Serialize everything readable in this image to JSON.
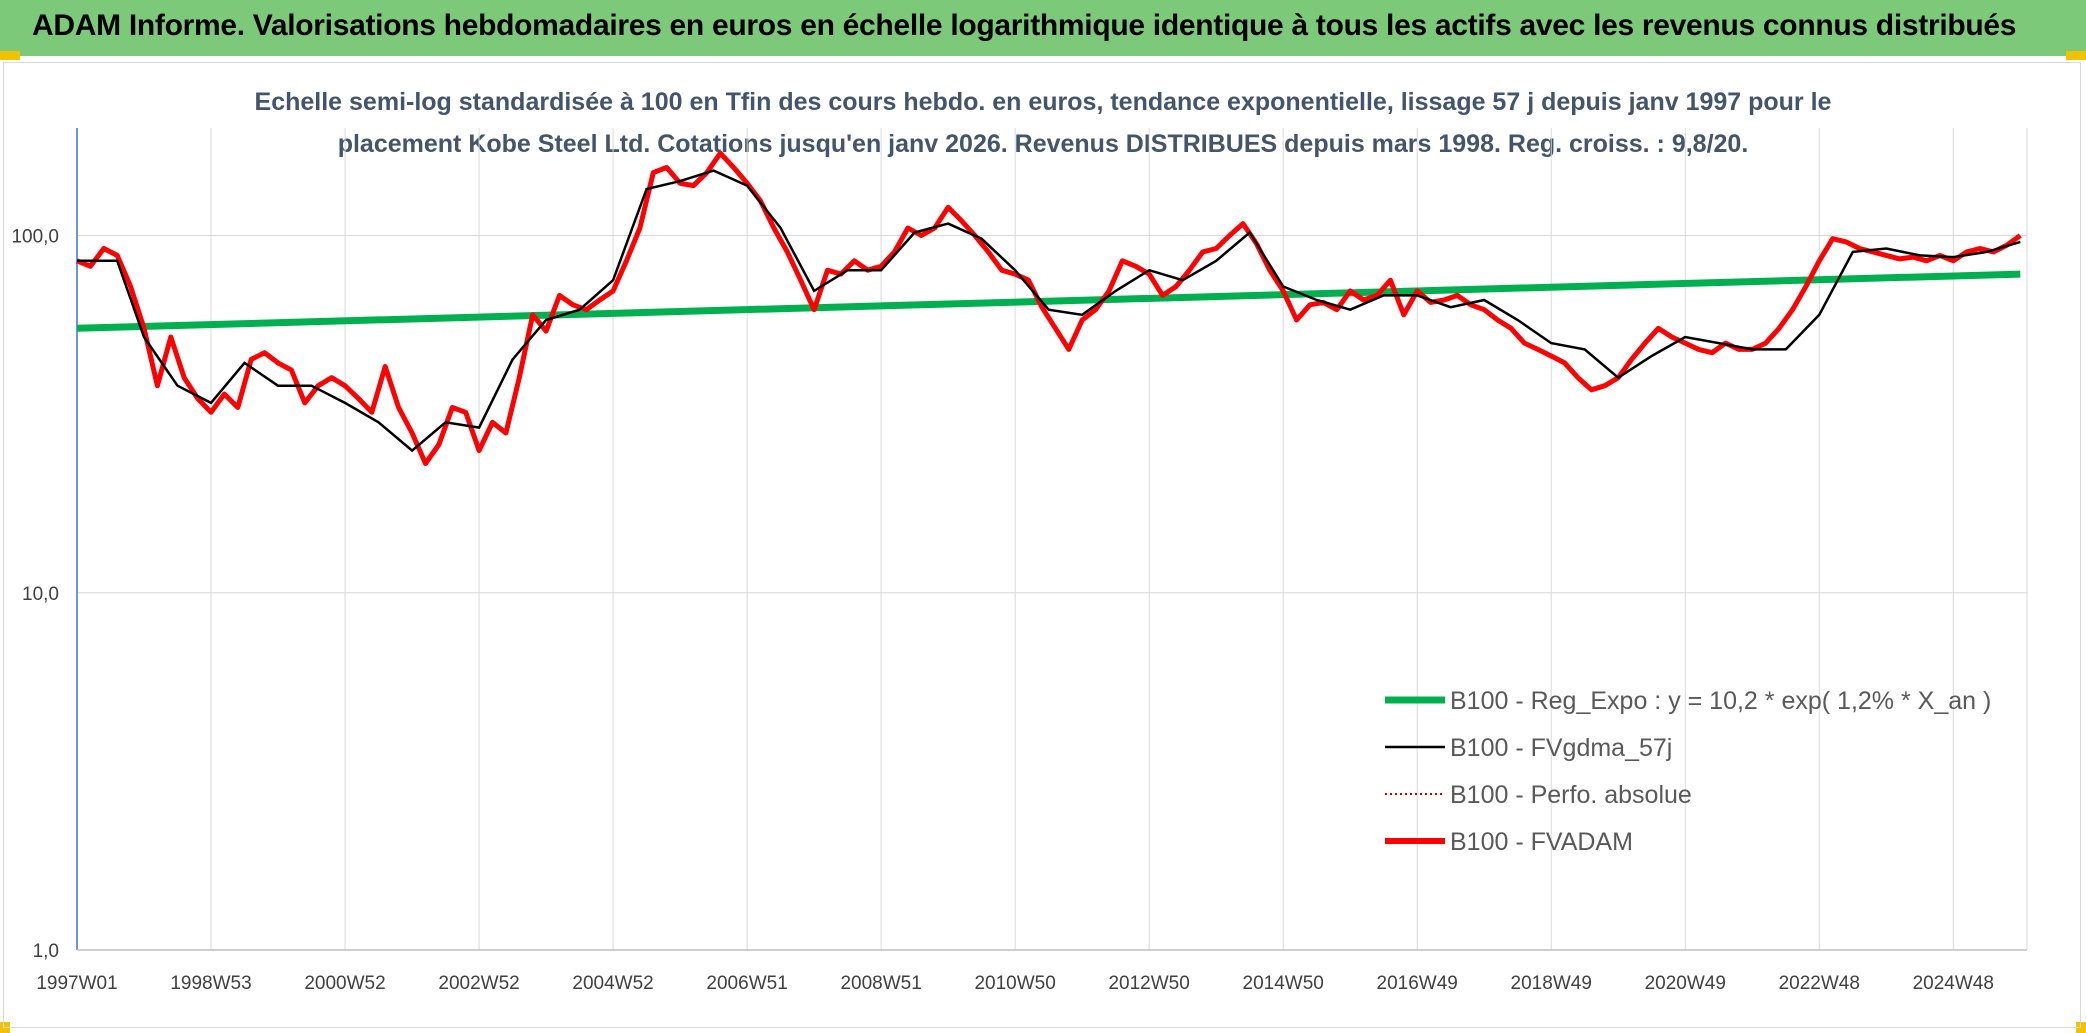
{
  "header": {
    "title": "ADAM Informe. Valorisations hebdomadaires en euros en échelle logarithmique identique à tous les actifs avec les revenus connus distribués"
  },
  "colors": {
    "banner": "#7dc97a",
    "reg_expo": "#00b050",
    "fvgdma": "#000000",
    "perfo": "#c00000",
    "fvadam": "#ff0000",
    "grid": "#d9d9d9"
  },
  "chart_data": {
    "type": "line",
    "title_line1": "Echelle semi-log standardisée à 100 en Tfin des cours hebdo. en euros, tendance exponentielle, lissage 57 j depuis janv 1997 pour le",
    "title_line2": "placement Kobe Steel Ltd. Cotations jusqu'en janv 2026. Revenus DISTRIBUES depuis mars 1998. Reg. croiss. : 9,8/20.",
    "y_scale": "log",
    "ylim": [
      1,
      200
    ],
    "y_ticks": [
      "1,0",
      "10,0",
      "100,0"
    ],
    "x_range": [
      1997.0,
      2026.1
    ],
    "x_ticks": [
      "1997W01",
      "1998W53",
      "2000W52",
      "2002W52",
      "2004W52",
      "2006W51",
      "2008W51",
      "2010W50",
      "2012W50",
      "2014W50",
      "2016W49",
      "2018W49",
      "2020W49",
      "2022W48",
      "2024W48"
    ],
    "grid": true,
    "legend_position": "lower-right",
    "series": [
      {
        "name": "B100 - Reg_Expo : y = 10,2 * exp( 1,2% *  X_an )",
        "style": "thick-green",
        "x": [
          1997.0,
          2026.0
        ],
        "y": [
          55,
          78
        ]
      },
      {
        "name": "B100 - FVgdma_57j",
        "style": "thin-black",
        "x": [
          1997.0,
          1997.6,
          1998.0,
          1998.5,
          1999.0,
          1999.5,
          2000.0,
          2000.5,
          2001.0,
          2001.5,
          2002.0,
          2002.5,
          2003.0,
          2003.5,
          2004.0,
          2004.5,
          2005.0,
          2005.5,
          2006.0,
          2006.5,
          2007.0,
          2007.5,
          2008.0,
          2008.5,
          2009.0,
          2009.5,
          2010.0,
          2010.5,
          2011.0,
          2011.5,
          2012.0,
          2012.5,
          2013.0,
          2013.5,
          2014.0,
          2014.5,
          2015.0,
          2015.5,
          2016.0,
          2016.5,
          2017.0,
          2017.5,
          2018.0,
          2018.5,
          2019.0,
          2019.5,
          2020.0,
          2020.5,
          2021.0,
          2021.5,
          2022.0,
          2022.5,
          2023.0,
          2023.5,
          2024.0,
          2024.5,
          2025.0,
          2025.5,
          2026.0
        ],
        "y": [
          85,
          85,
          52,
          38,
          34,
          44,
          38,
          38,
          34,
          30,
          25,
          30,
          29,
          45,
          58,
          62,
          75,
          135,
          142,
          152,
          138,
          105,
          70,
          80,
          80,
          102,
          108,
          98,
          80,
          62,
          60,
          70,
          80,
          75,
          85,
          102,
          72,
          66,
          62,
          68,
          68,
          63,
          66,
          58,
          50,
          48,
          40,
          46,
          52,
          50,
          48,
          48,
          60,
          90,
          92,
          88,
          87,
          90,
          96
        ]
      },
      {
        "name": "B100 - Perfo. absolue",
        "style": "dotted-darkred",
        "x": [],
        "y": []
      },
      {
        "name": "B100 - FVADAM",
        "style": "thick-red",
        "x": [
          1997.0,
          1997.2,
          1997.4,
          1997.6,
          1997.8,
          1998.0,
          1998.2,
          1998.4,
          1998.6,
          1998.8,
          1999.0,
          1999.2,
          1999.4,
          1999.6,
          1999.8,
          2000.0,
          2000.2,
          2000.4,
          2000.6,
          2000.8,
          2001.0,
          2001.2,
          2001.4,
          2001.6,
          2001.8,
          2002.0,
          2002.2,
          2002.4,
          2002.6,
          2002.8,
          2003.0,
          2003.2,
          2003.4,
          2003.6,
          2003.8,
          2004.0,
          2004.2,
          2004.4,
          2004.6,
          2004.8,
          2005.0,
          2005.2,
          2005.4,
          2005.6,
          2005.8,
          2006.0,
          2006.2,
          2006.4,
          2006.6,
          2006.8,
          2007.0,
          2007.2,
          2007.4,
          2007.6,
          2007.8,
          2008.0,
          2008.2,
          2008.4,
          2008.6,
          2008.8,
          2009.0,
          2009.2,
          2009.4,
          2009.6,
          2009.8,
          2010.0,
          2010.2,
          2010.4,
          2010.6,
          2010.8,
          2011.0,
          2011.2,
          2011.4,
          2011.6,
          2011.8,
          2012.0,
          2012.2,
          2012.4,
          2012.6,
          2012.8,
          2013.0,
          2013.2,
          2013.4,
          2013.6,
          2013.8,
          2014.0,
          2014.2,
          2014.4,
          2014.6,
          2014.8,
          2015.0,
          2015.2,
          2015.4,
          2015.6,
          2015.8,
          2016.0,
          2016.2,
          2016.4,
          2016.6,
          2016.8,
          2017.0,
          2017.2,
          2017.4,
          2017.6,
          2017.8,
          2018.0,
          2018.2,
          2018.4,
          2018.6,
          2018.8,
          2019.0,
          2019.2,
          2019.4,
          2019.6,
          2019.8,
          2020.0,
          2020.2,
          2020.4,
          2020.6,
          2020.8,
          2021.0,
          2021.2,
          2021.4,
          2021.6,
          2021.8,
          2022.0,
          2022.2,
          2022.4,
          2022.6,
          2022.8,
          2023.0,
          2023.2,
          2023.4,
          2023.6,
          2023.8,
          2024.0,
          2024.2,
          2024.4,
          2024.6,
          2024.8,
          2025.0,
          2025.2,
          2025.4,
          2025.6,
          2025.8,
          2026.0
        ],
        "y": [
          85,
          82,
          92,
          88,
          72,
          55,
          38,
          52,
          40,
          35,
          32,
          36,
          33,
          45,
          47,
          44,
          42,
          34,
          38,
          40,
          38,
          35,
          32,
          43,
          33,
          28,
          23,
          26,
          33,
          32,
          25,
          30,
          28,
          40,
          60,
          54,
          68,
          64,
          62,
          66,
          70,
          85,
          105,
          150,
          155,
          140,
          138,
          150,
          170,
          155,
          140,
          125,
          105,
          90,
          75,
          62,
          80,
          78,
          85,
          80,
          82,
          90,
          105,
          100,
          105,
          120,
          110,
          100,
          90,
          80,
          78,
          75,
          63,
          55,
          48,
          58,
          62,
          70,
          85,
          82,
          78,
          68,
          72,
          80,
          90,
          92,
          100,
          108,
          95,
          80,
          70,
          58,
          64,
          65,
          62,
          70,
          66,
          68,
          75,
          60,
          70,
          65,
          66,
          68,
          64,
          62,
          58,
          55,
          50,
          48,
          46,
          44,
          40,
          37,
          38,
          40,
          45,
          50,
          55,
          52,
          50,
          48,
          47,
          50,
          48,
          48,
          50,
          55,
          62,
          72,
          85,
          98,
          96,
          92,
          90,
          88,
          86,
          87,
          85,
          88,
          85,
          90,
          92,
          90,
          94,
          100
        ]
      }
    ]
  }
}
